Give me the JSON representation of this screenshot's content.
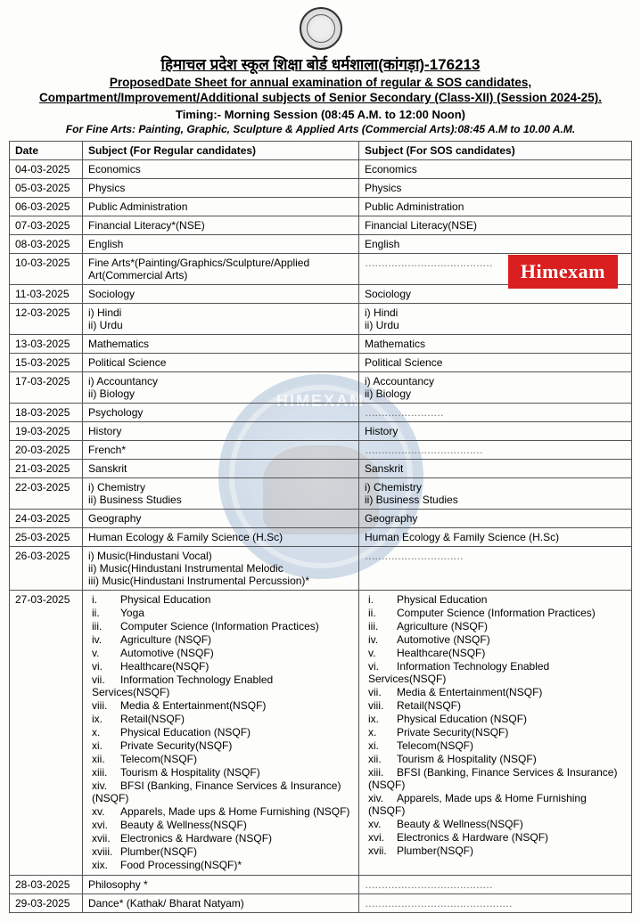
{
  "header": {
    "title_main": "हिमाचल प्रदेश स्कूल शिक्षा बोर्ड धर्मशाला(कांगड़ा)-176213",
    "proposed_label": "Proposed",
    "title_sub1_rest": "Date Sheet for annual examination of regular & SOS candidates,",
    "title_sub2": "Compartment/Improvement/Additional subjects of Senior Secondary (Class-XII) (Session 2024-25).",
    "timing": "Timing:-  Morning Session (08:45 A.M. to 12:00 Noon)",
    "fine_arts_note": "For Fine Arts: Painting, Graphic, Sculpture & Applied Arts (Commercial Arts):08:45 A.M to 10.00 A.M."
  },
  "badge": "Himexam",
  "watermark_text": "HIMEXAM",
  "columns": {
    "date": "Date",
    "regular": "Subject (For Regular candidates)",
    "sos": "Subject (For SOS candidates)"
  },
  "rows": [
    {
      "date": "04-03-2025",
      "reg": "Economics",
      "sos": "Economics"
    },
    {
      "date": "05-03-2025",
      "reg": "Physics",
      "sos": "Physics"
    },
    {
      "date": "06-03-2025",
      "reg": "Public Administration",
      "sos": "Public Administration"
    },
    {
      "date": "07-03-2025",
      "reg": "Financial Literacy*(NSE)",
      "sos": "Financial Literacy(NSE)"
    },
    {
      "date": "08-03-2025",
      "reg": "English",
      "sos": "English"
    },
    {
      "date": "10-03-2025",
      "reg": "Fine Arts*(Painting/Graphics/Sculpture/Applied Art(Commercial Arts)",
      "sos": "…………………………………"
    },
    {
      "date": "11-03-2025",
      "reg": "Sociology",
      "sos": "Sociology"
    },
    {
      "date": "12-03-2025",
      "reg": "i) Hindi\nii) Urdu",
      "sos": "i)  Hindi\nii) Urdu"
    },
    {
      "date": "13-03-2025",
      "reg": "Mathematics",
      "sos": "Mathematics"
    },
    {
      "date": "15-03-2025",
      "reg": "Political Science",
      "sos": "Political Science"
    },
    {
      "date": "17-03-2025",
      "reg": "i) Accountancy\nii) Biology",
      "sos": "i) Accountancy\nii) Biology"
    },
    {
      "date": "18-03-2025",
      "reg": "Psychology",
      "sos": "……………………"
    },
    {
      "date": "19-03-2025",
      "reg": "History",
      "sos": "History"
    },
    {
      "date": "20-03-2025",
      "reg": "French*",
      "sos": "………………………………"
    },
    {
      "date": "21-03-2025",
      "reg": "Sanskrit",
      "sos": "Sanskrit"
    },
    {
      "date": "22-03-2025",
      "reg": "i) Chemistry\nii) Business Studies",
      "sos": "i) Chemistry\nii) Business Studies"
    },
    {
      "date": "24-03-2025",
      "reg": "Geography",
      "sos": "Geography"
    },
    {
      "date": "25-03-2025",
      "reg": "Human Ecology & Family Science (H.Sc)",
      "sos": "Human Ecology & Family Science (H.Sc)"
    },
    {
      "date": "26-03-2025",
      "reg": "i)  Music(Hindustani Vocal)\nii) Music(Hindustani Instrumental Melodic\niii) Music(Hindustani Instrumental Percussion)*",
      "sos": "…………………………"
    },
    {
      "date": "27-03-2025",
      "reg_list": [
        "Physical Education",
        "Yoga",
        "Computer Science (Information Practices)",
        "Agriculture (NSQF)",
        "Automotive (NSQF)",
        "Healthcare(NSQF)",
        "Information Technology Enabled Services(NSQF)",
        "Media & Entertainment(NSQF)",
        "Retail(NSQF)",
        "Physical Education (NSQF)",
        "Private Security(NSQF)",
        "Telecom(NSQF)",
        "Tourism & Hospitality (NSQF)",
        "BFSI (Banking, Finance Services & Insurance) (NSQF)",
        "Apparels, Made ups & Home Furnishing (NSQF)",
        "Beauty & Wellness(NSQF)",
        "Electronics & Hardware (NSQF)",
        "Plumber(NSQF)",
        "Food Processing(NSQF)*"
      ],
      "sos_list": [
        "Physical Education",
        "Computer Science (Information Practices)",
        "Agriculture (NSQF)",
        "Automotive (NSQF)",
        "Healthcare(NSQF)",
        "Information Technology Enabled Services(NSQF)",
        "Media & Entertainment(NSQF)",
        "Retail(NSQF)",
        "Physical Education (NSQF)",
        "Private Security(NSQF)",
        "Telecom(NSQF)",
        "Tourism & Hospitality (NSQF)",
        "BFSI (Banking, Finance Services & Insurance) (NSQF)",
        "Apparels, Made ups & Home Furnishing (NSQF)",
        "Beauty & Wellness(NSQF)",
        "Electronics & Hardware (NSQF)",
        "Plumber(NSQF)"
      ]
    },
    {
      "date": "28-03-2025",
      "reg": "Philosophy *",
      "sos": "…………………………………"
    },
    {
      "date": "29-03-2025",
      "reg": "Dance* (Kathak/ Bharat Natyam)",
      "sos": "………………………………………"
    }
  ]
}
